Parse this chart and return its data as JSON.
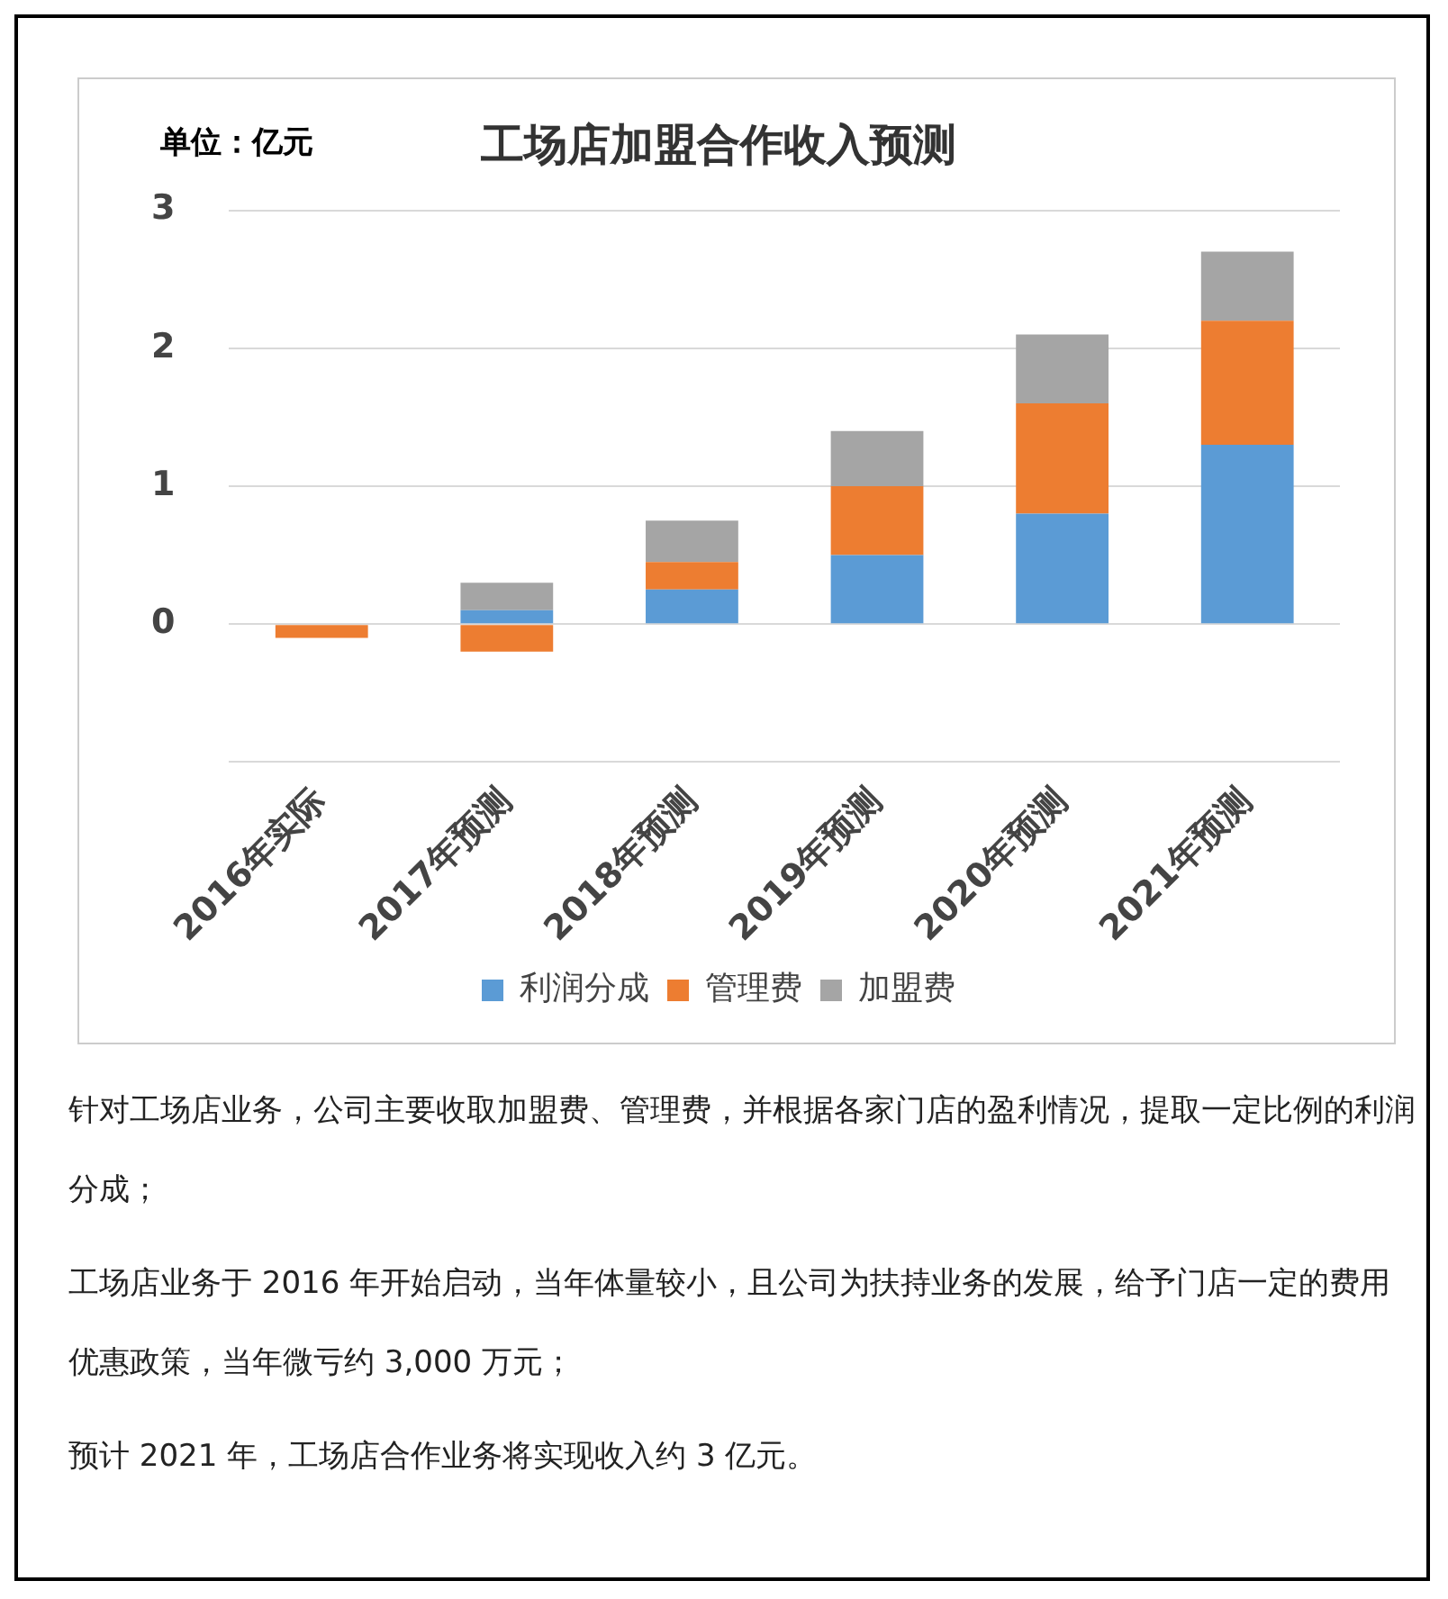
{
  "chart_data": {
    "type": "bar",
    "title": "工场店加盟合作收入预测",
    "ylabel": "单位：亿元",
    "stacked": true,
    "categories": [
      "2016年实际",
      "2017年预测",
      "2018年预测",
      "2019年预测",
      "2020年预测",
      "2021年预测"
    ],
    "series": [
      {
        "name": "利润分成",
        "color": "#5b9bd5",
        "values": [
          0,
          0.1,
          0.25,
          0.5,
          0.8,
          1.3
        ]
      },
      {
        "name": "管理费",
        "color": "#ed7d31",
        "values": [
          -0.1,
          -0.2,
          0.2,
          0.5,
          0.8,
          0.9
        ]
      },
      {
        "name": "加盟费",
        "color": "#a5a5a5",
        "values": [
          0,
          0.2,
          0.3,
          0.4,
          0.5,
          0.5
        ]
      }
    ],
    "ylim": [
      -1,
      3
    ],
    "yticks": [
      {
        "value": -1,
        "label": null
      },
      0,
      1,
      2,
      3
    ],
    "grid": "y",
    "legend": "bottom",
    "annotations": [
      "针对工场店业务，公司主要收取加盟费、管理费，并根据各家门店的盈利情况，提取一定比例的利润分成；",
      "工场店业务于 2016 年开始启动，当年体量较小，且公司为扶持业务的发展，给予门店一定的费用优惠政策，当年微亏约 3,000 万元；",
      "预计 2021 年，工场店合作业务将实现收入约 3 亿元。"
    ]
  }
}
